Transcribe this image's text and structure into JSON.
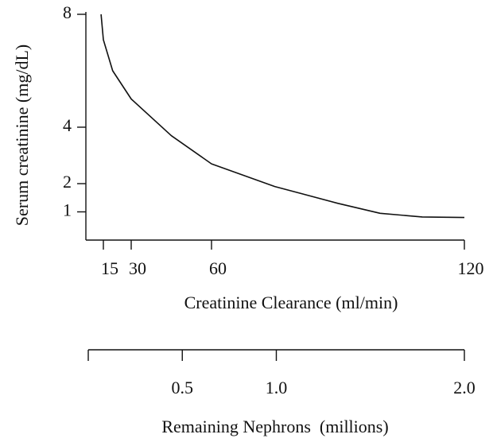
{
  "chart_data": {
    "type": "line",
    "ylabel": "Serum creatinine (mg/dL)",
    "xlabel": "Creatinine Clearance (ml/min)",
    "x": [
      13,
      15,
      20,
      30,
      45,
      60,
      75,
      90,
      100,
      110,
      120
    ],
    "series": [
      {
        "color": "#111111",
        "values": [
          8,
          7.1,
          6.0,
          5.0,
          3.7,
          2.7,
          1.9,
          1.3,
          0.95,
          0.82,
          0.8
        ]
      }
    ],
    "xlim": [
      0,
      120
    ],
    "xticks": [
      15,
      30,
      60,
      120
    ],
    "ylim": [
      0,
      8
    ],
    "yticks": [
      8,
      4,
      2,
      1
    ],
    "x2label": "Remaining Nephrons  (millions)",
    "x2lim": [
      0,
      2
    ],
    "x2ticks": [
      {
        "value": 0.5,
        "label": "0.5"
      },
      {
        "value": 1,
        "label": "1.0"
      },
      {
        "value": 2,
        "label": "2.0"
      }
    ]
  }
}
